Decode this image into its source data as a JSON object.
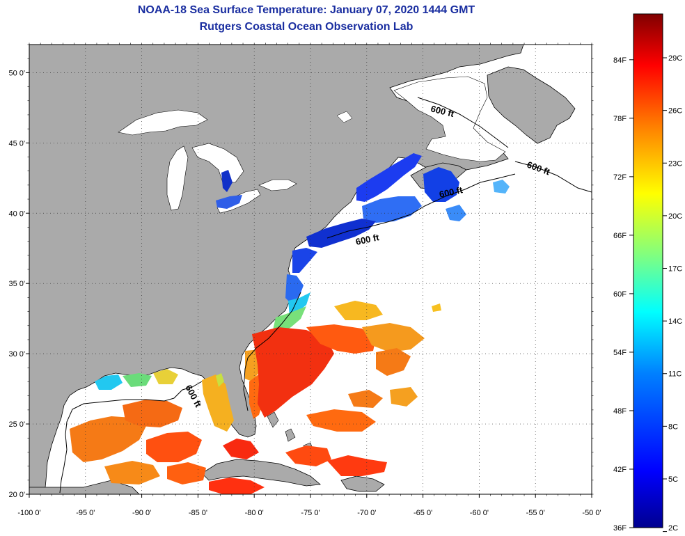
{
  "title": "NOAA-18 Sea Surface Temperature:  January 07, 2020 1444 GMT",
  "subtitle": "Rutgers Coastal Ocean Observation Lab",
  "map": {
    "lon_range": [
      -100,
      -50
    ],
    "lat_range": [
      20,
      52
    ],
    "lon_ticks": [
      "-100 0'",
      "-95 0'",
      "-90 0'",
      "-85 0'",
      "-80 0'",
      "-75 0'",
      "-70 0'",
      "-65 0'",
      "-60 0'",
      "-55 0'",
      "-50 0'"
    ],
    "lat_ticks": [
      "20 0'",
      "25 0'",
      "30 0'",
      "35 0'",
      "40 0'",
      "45 0'",
      "50 0'"
    ],
    "grid": "dotted",
    "land_color": "#aaaaaa",
    "contour_label": "600 ft"
  },
  "colorbar": {
    "fahrenheit_labels": [
      "84F",
      "78F",
      "72F",
      "66F",
      "60F",
      "54F",
      "48F",
      "42F",
      "36F"
    ],
    "celsius_labels": [
      "29C",
      "26C",
      "23C",
      "20C",
      "17C",
      "14C",
      "11C",
      "8C",
      "5C",
      "2C"
    ],
    "colormap": "jet",
    "colors": [
      "#00008f",
      "#0000ff",
      "#0080ff",
      "#00ffff",
      "#80ff80",
      "#ffff00",
      "#ff8000",
      "#ff0000",
      "#800000"
    ]
  }
}
